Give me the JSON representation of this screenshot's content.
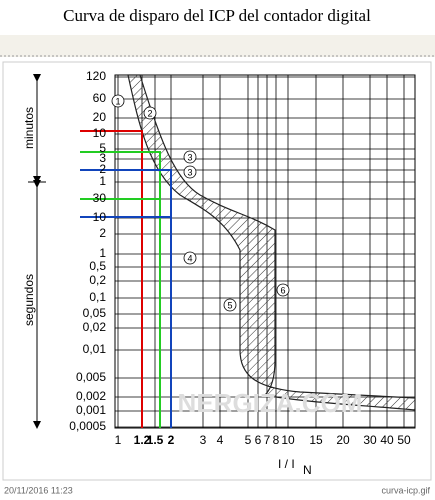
{
  "header": {
    "title": "Curva de disparo  del  ICP  del contador digital"
  },
  "figure": {
    "y_axis_labels": [
      "minutos",
      "segundos"
    ],
    "y_ticks": [
      "120",
      "60",
      "20",
      "10",
      "5",
      "3",
      "2",
      "1",
      "30",
      "10",
      "2",
      "1",
      "0,5",
      "0,2",
      "0,1",
      "0,05",
      "0,02",
      "0,01",
      "0,005",
      "0,002",
      "0,001",
      "0,0005"
    ],
    "x_ticks": [
      "1",
      "1.2",
      "1.5",
      "2",
      "3",
      "4",
      "5",
      "6",
      "7",
      "8",
      "10",
      "15",
      "20",
      "30",
      "40",
      "50"
    ],
    "x_axis_label": "I / I",
    "x_axis_subscript": "N",
    "curve_labels": [
      "1",
      "2",
      "3",
      "3",
      "4",
      "5",
      "6"
    ],
    "watermark": "NERGIZA.COM"
  },
  "footer": {
    "timestamp": "20/11/2016 11:23",
    "filename": "curva-icp.gif"
  }
}
